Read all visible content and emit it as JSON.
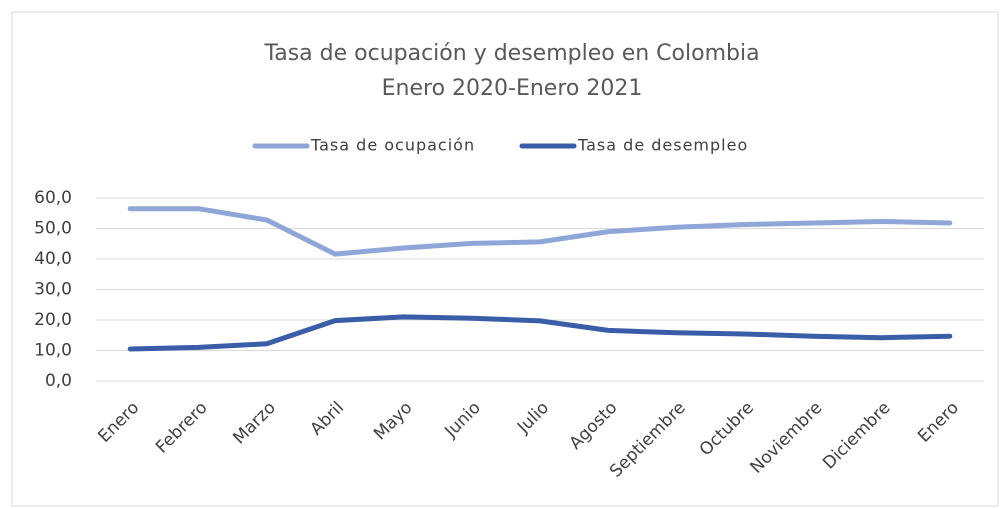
{
  "chart_data": {
    "type": "line",
    "title": "Tasa de ocupación y desempleo en Colombia",
    "subtitle": "Enero 2020-Enero 2021",
    "categories": [
      "Enero",
      "Febrero",
      "Marzo",
      "Abril",
      "Mayo",
      "Junio",
      "Julio",
      "Agosto",
      "Septiembre",
      "Octubre",
      "Noviembre",
      "Diciembre",
      "Enero"
    ],
    "series": [
      {
        "name": "Tasa de ocupación",
        "color": "#8fa6d9",
        "values": [
          56.5,
          56.5,
          52.8,
          41.6,
          43.6,
          45.1,
          45.6,
          49.0,
          50.4,
          51.3,
          51.8,
          52.3,
          51.8
        ]
      },
      {
        "name": "Tasa de desempleo",
        "color": "#3a5da8",
        "values": [
          10.5,
          11.0,
          12.2,
          19.8,
          21.0,
          20.6,
          19.7,
          16.6,
          15.8,
          15.4,
          14.7,
          14.2,
          14.7
        ]
      }
    ],
    "ylim": [
      0,
      60
    ],
    "yticks": [
      {
        "value": 0,
        "label": "0,0"
      },
      {
        "value": 10,
        "label": "10,0"
      },
      {
        "value": 20,
        "label": "20,0"
      },
      {
        "value": 30,
        "label": "30,0"
      },
      {
        "value": 40,
        "label": "40,0"
      },
      {
        "value": 50,
        "label": "50,0"
      },
      {
        "value": 60,
        "label": "60,0"
      }
    ],
    "grid": true,
    "legend": "top"
  }
}
